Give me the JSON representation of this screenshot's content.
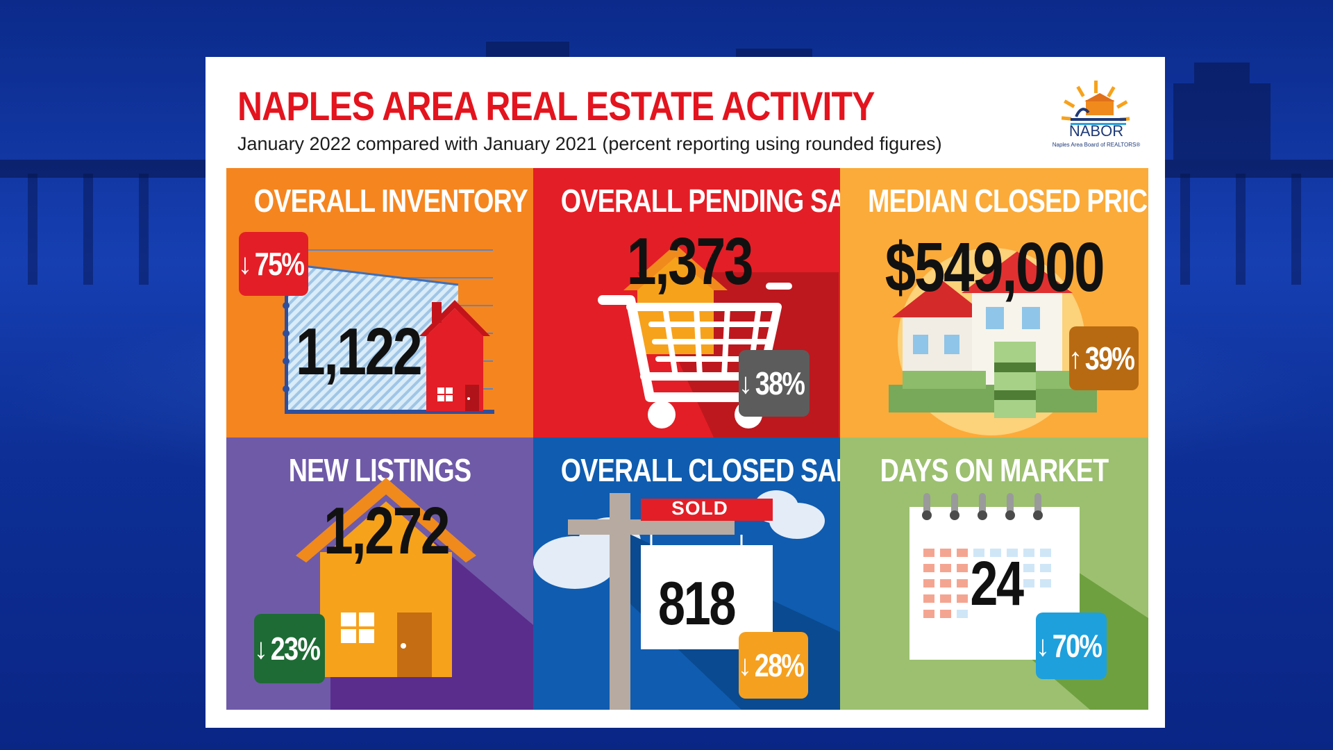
{
  "header": {
    "title": "NAPLES AREA REAL ESTATE ACTIVITY",
    "subtitle": "January 2022 compared with January 2021 (percent reporting using rounded figures)"
  },
  "logo": {
    "name": "NABOR",
    "tagline": "Naples Area Board of REALTORS®"
  },
  "tiles": {
    "inventory": {
      "title": "OVERALL INVENTORY",
      "value": "1,122",
      "change": "75%",
      "direction": "down",
      "color": "#f5851f",
      "badge_color": "#e41e26"
    },
    "pending": {
      "title": "OVERALL PENDING SALES",
      "value": "1,373",
      "change": "38%",
      "direction": "down",
      "color": "#e41e26",
      "badge_color": "#5c5c5c"
    },
    "price": {
      "title": "MEDIAN CLOSED PRICE",
      "value": "$549,000",
      "change": "39%",
      "direction": "up",
      "color": "#fbab3a",
      "badge_color": "#b86a12"
    },
    "listings": {
      "title": "NEW LISTINGS",
      "value": "1,272",
      "change": "23%",
      "direction": "down",
      "color": "#6f5aa8",
      "badge_color": "#1e6b35"
    },
    "closed": {
      "title": "OVERALL CLOSED SALES",
      "value": "818",
      "change": "28%",
      "direction": "down",
      "sign": "SOLD",
      "color": "#0f5cb0",
      "badge_color": "#f5a01f"
    },
    "days": {
      "title": "DAYS ON MARKET",
      "value": "24",
      "change": "70%",
      "direction": "down",
      "color": "#9cc070",
      "badge_color": "#1ea0dc"
    }
  },
  "icons": {
    "arrow_down": "↓",
    "arrow_up": "↑"
  }
}
